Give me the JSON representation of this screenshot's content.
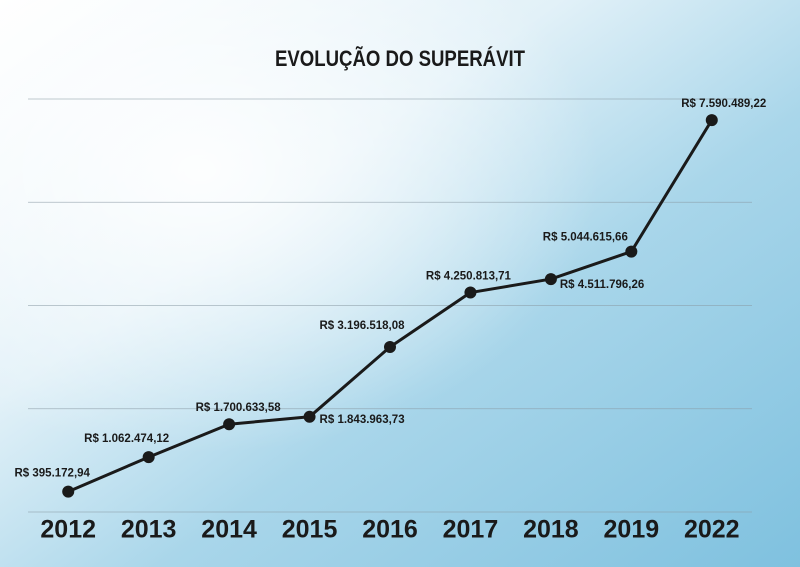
{
  "chart_data": {
    "type": "line",
    "title": "EVOLUÇÃO DO SUPERÁVIT",
    "categories": [
      "2012",
      "2013",
      "2014",
      "2015",
      "2016",
      "2017",
      "2018",
      "2019",
      "2022"
    ],
    "values": [
      395172.94,
      1062474.12,
      1700633.58,
      1843963.73,
      3196518.08,
      4250813.71,
      4511796.26,
      5044615.66,
      7590489.22
    ],
    "value_labels": [
      "R$ 395.172,94",
      "R$ 1.062.474,12",
      "R$ 1.700.633,58",
      "R$ 1.843.963,73",
      "R$ 3.196.518,08",
      "R$ 4.250.813,71",
      "R$ 4.511.796,26",
      "R$ 5.044.615,66",
      "R$ 7.590.489,22"
    ],
    "color": "#1a1a1a",
    "ylim": [
      0,
      8000000
    ],
    "yticks": [
      0,
      2000000,
      4000000,
      6000000,
      8000000
    ],
    "grid": true
  }
}
